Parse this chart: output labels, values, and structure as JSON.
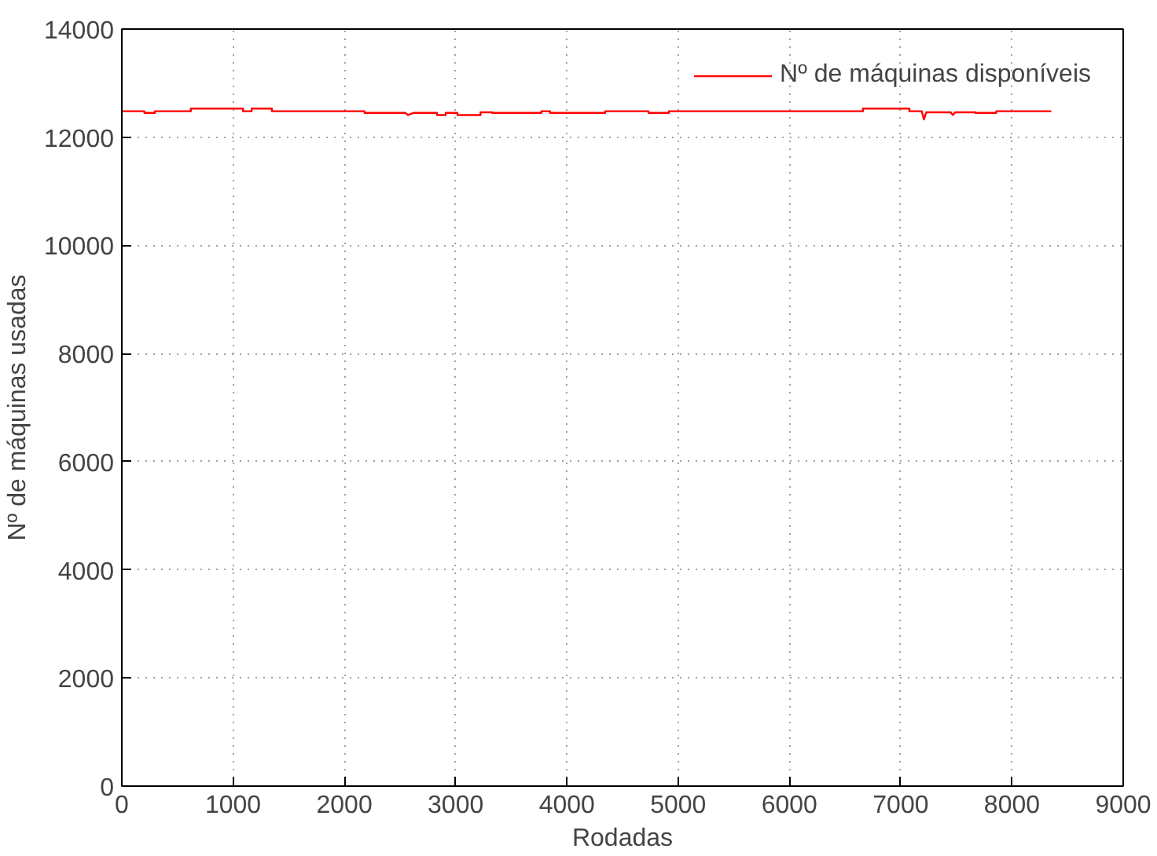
{
  "chart_data": {
    "type": "line",
    "xlabel": "Rodadas",
    "ylabel": "Nº de máquinas usadas",
    "x": [
      0,
      203,
      203,
      297,
      297,
      620,
      620,
      1089,
      1089,
      1167,
      1167,
      1349,
      1349,
      2182,
      2182,
      2547,
      2573,
      2625,
      2625,
      2833,
      2833,
      2911,
      2911,
      3016,
      3016,
      3224,
      3224,
      3328,
      3328,
      3771,
      3771,
      3849,
      3849,
      4344,
      4344,
      4734,
      4734,
      4917,
      4917,
      6661,
      6661,
      7078,
      7078,
      7190,
      7208,
      7230,
      7230,
      7450,
      7469,
      7490,
      7490,
      7672,
      7672,
      7859,
      7859,
      8354
    ],
    "series": [
      {
        "name": "Nº de máquinas disponíveis",
        "color": "#ff0000",
        "values": [
          12480,
          12480,
          12450,
          12450,
          12480,
          12480,
          12530,
          12530,
          12480,
          12480,
          12530,
          12530,
          12480,
          12480,
          12450,
          12450,
          12410,
          12450,
          12450,
          12450,
          12410,
          12410,
          12450,
          12450,
          12410,
          12410,
          12460,
          12460,
          12450,
          12450,
          12480,
          12480,
          12450,
          12450,
          12480,
          12480,
          12450,
          12450,
          12480,
          12480,
          12530,
          12530,
          12480,
          12480,
          12330,
          12460,
          12460,
          12460,
          12410,
          12460,
          12460,
          12460,
          12450,
          12450,
          12480,
          12480
        ]
      }
    ],
    "xlim": [
      0,
      9000
    ],
    "ylim": [
      0,
      14000
    ],
    "xticks": [
      0,
      1000,
      2000,
      3000,
      4000,
      5000,
      6000,
      7000,
      8000,
      9000
    ],
    "yticks": [
      0,
      2000,
      4000,
      6000,
      8000,
      10000,
      12000,
      14000
    ],
    "grid": true,
    "legend": "top right",
    "line_style": "solid",
    "marker": "none"
  }
}
